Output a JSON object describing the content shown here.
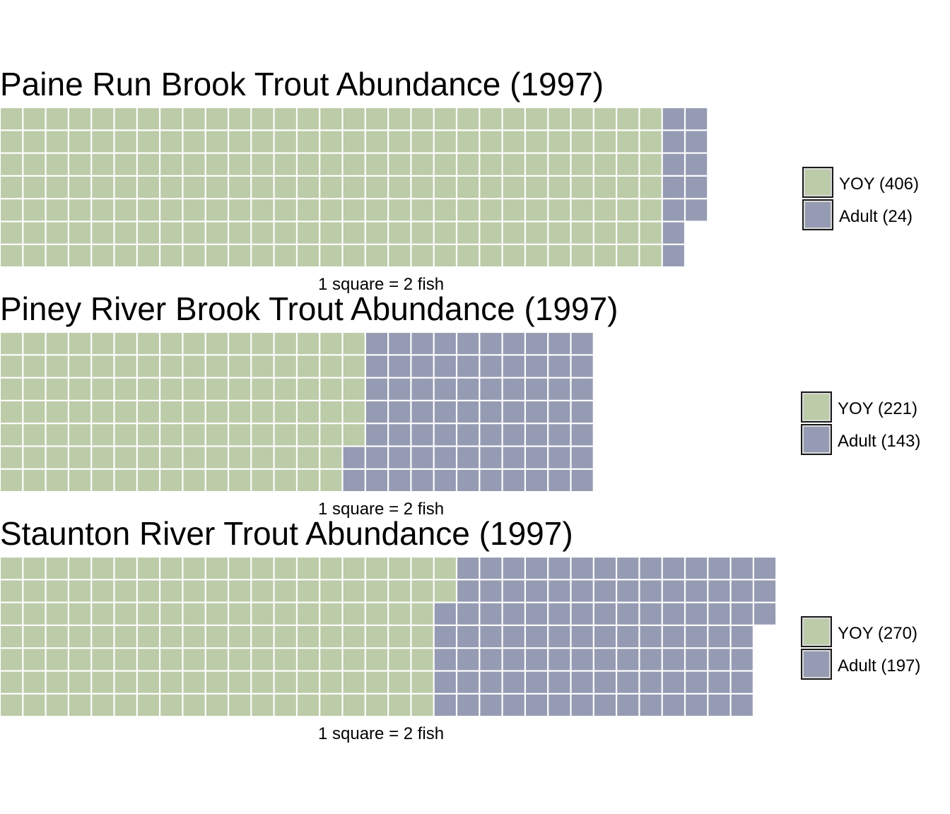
{
  "colors": {
    "YOY": "#bccba8",
    "Adult": "#959bb2",
    "gridline": "#ffffff"
  },
  "chart_data": [
    {
      "type": "waffle",
      "title": "Paine Run Brook Trout Abundance (1997)",
      "caption": "1 square = 2 fish",
      "rows": 7,
      "fish_per_square": 2,
      "series": [
        {
          "name": "YOY",
          "label": "YOY (406)",
          "value": 406,
          "squares": 203
        },
        {
          "name": "Adult",
          "label": "Adult (24)",
          "value": 24,
          "squares": 12
        }
      ]
    },
    {
      "type": "waffle",
      "title": "Piney River Brook Trout Abundance (1997)",
      "caption": "1 square = 2 fish",
      "rows": 7,
      "fish_per_square": 2,
      "series": [
        {
          "name": "YOY",
          "label": "YOY (221)",
          "value": 221,
          "squares": 110
        },
        {
          "name": "Adult",
          "label": "Adult (143)",
          "value": 143,
          "squares": 72
        }
      ]
    },
    {
      "type": "waffle",
      "title": "Staunton River Trout Abundance (1997)",
      "caption": "1 square = 2 fish",
      "rows": 7,
      "fish_per_square": 2,
      "series": [
        {
          "name": "YOY",
          "label": "YOY (270)",
          "value": 270,
          "squares": 135
        },
        {
          "name": "Adult",
          "label": "Adult (197)",
          "value": 197,
          "squares": 99
        }
      ]
    }
  ]
}
